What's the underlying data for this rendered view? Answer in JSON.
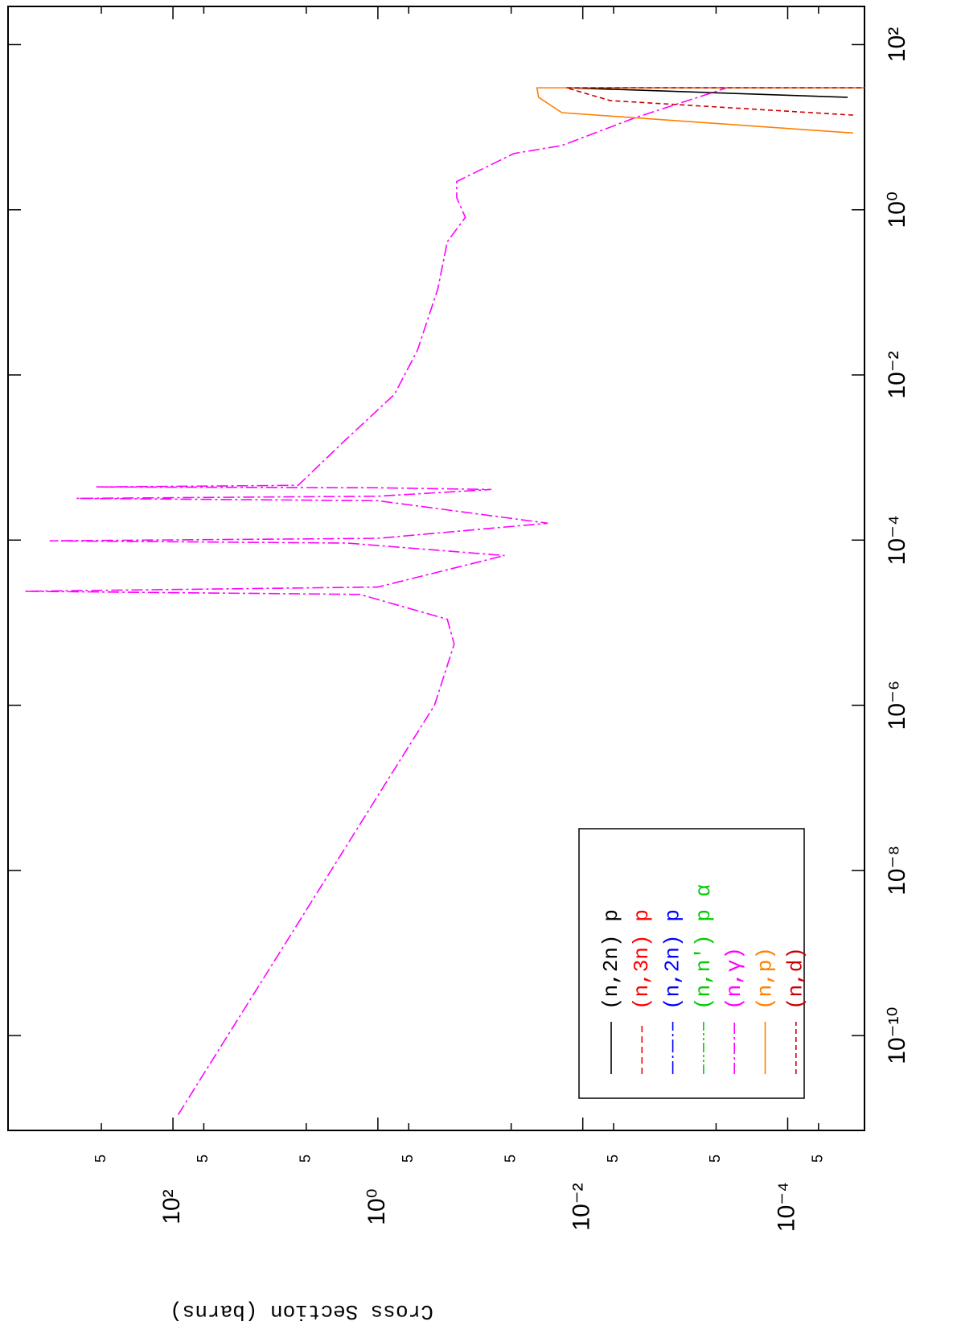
{
  "chart_data": {
    "type": "line",
    "y_label": "Cross Section (barns)",
    "x_log": true,
    "y_log": true,
    "xlim": [
      7.1e-12,
      290
    ],
    "ylim": [
      4070,
      1.78e-05
    ],
    "xticks": [
      {
        "value": 1e-10,
        "label": "10⁻¹⁰"
      },
      {
        "value": 1e-08,
        "label": "10⁻⁸"
      },
      {
        "value": 1e-06,
        "label": "10⁻⁶"
      },
      {
        "value": 0.0001,
        "label": "10⁻⁴"
      },
      {
        "value": 0.01,
        "label": "10⁻²"
      },
      {
        "value": 1,
        "label": "10⁰"
      },
      {
        "value": 100,
        "label": "10²"
      }
    ],
    "yticks": [
      {
        "value": 500,
        "label": "5"
      },
      {
        "value": 100,
        "label": "10²"
      },
      {
        "value": 50,
        "label": "5"
      },
      {
        "value": 5,
        "label": "5"
      },
      {
        "value": 1,
        "label": "10⁰"
      },
      {
        "value": 0.5,
        "label": "5"
      },
      {
        "value": 0.05,
        "label": "5"
      },
      {
        "value": 0.01,
        "label": "10⁻²"
      },
      {
        "value": 0.005,
        "label": "5"
      },
      {
        "value": 0.0005,
        "label": "5"
      },
      {
        "value": 0.0001,
        "label": "10⁻⁴"
      },
      {
        "value": 5e-05,
        "label": "5"
      }
    ],
    "series": [
      {
        "name": "(n,2n) p",
        "color": "#000000",
        "dash": "none",
        "x": [
          23,
          28,
          30,
          30
        ],
        "values": [
          2.6e-05,
          0.0026,
          0.0145,
          1e-05
        ]
      },
      {
        "name": "(n,3n) p",
        "color": "#ff0000",
        "dash": "8 5",
        "x": [],
        "values": []
      },
      {
        "name": "(n,2n) p",
        "color": "#0000ff",
        "dash": "16 4 3 4",
        "x": [],
        "values": []
      },
      {
        "name": "(n,n') p α",
        "color": "#00cc00",
        "dash": "12 3 3 3 3 3",
        "x": [],
        "values": []
      },
      {
        "name": "(n,γ)",
        "color": "#ff00ff",
        "dash": "14 4 3 4",
        "x": [
          1.1e-11,
          1e-06,
          5.5e-06,
          1.1e-05,
          2.2e-05,
          2.4e-05,
          2.7e-05,
          6.5e-05,
          9.2e-05,
          9.8e-05,
          0.000105,
          0.00016,
          0.0003,
          0.00032,
          0.00034,
          0.00041,
          0.00043,
          0.00044,
          0.00046,
          0.0017,
          0.0058,
          0.02,
          0.11,
          0.41,
          0.81,
          1.4,
          2.2,
          4.8,
          6.0,
          13,
          30
        ],
        "values": [
          89,
          0.28,
          0.18,
          0.21,
          1.5,
          2800,
          1.0,
          0.058,
          2.0,
          1600,
          1.0,
          0.022,
          1.0,
          870,
          1.0,
          0.078,
          1.0,
          560,
          6.0,
          2.0,
          0.69,
          0.41,
          0.26,
          0.21,
          0.14,
          0.17,
          0.17,
          0.047,
          0.016,
          0.0031,
          0.00039
        ]
      },
      {
        "name": "(n,p)",
        "color": "#ff8000",
        "dash": "none",
        "x": [
          8.5,
          15,
          23,
          30,
          30
        ],
        "values": [
          2.3e-05,
          0.016,
          0.027,
          0.028,
          1e-05
        ]
      },
      {
        "name": "(n,d)",
        "color": "#cc0000",
        "dash": "6 4",
        "x": [
          14,
          21,
          30,
          30
        ],
        "values": [
          2.3e-05,
          0.0054,
          0.0145,
          1e-05
        ]
      }
    ]
  }
}
